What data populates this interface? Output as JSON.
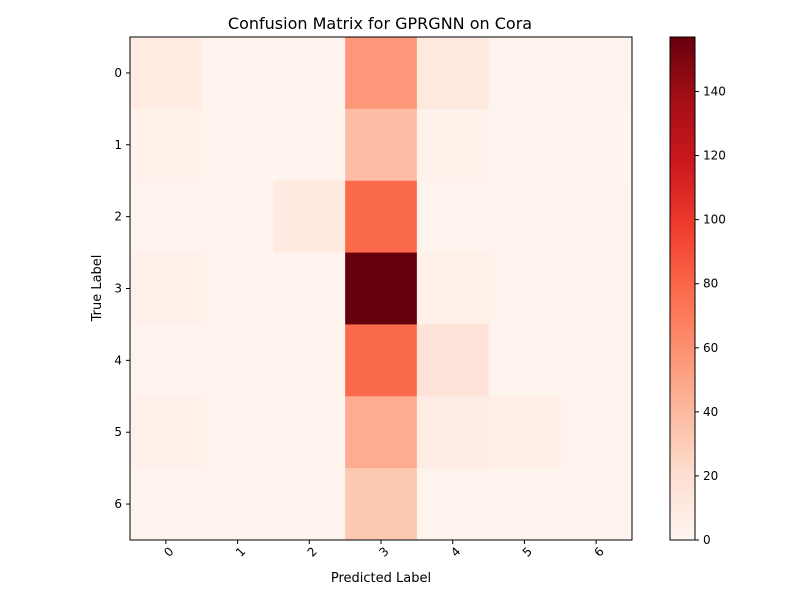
{
  "chart_data": {
    "type": "heatmap",
    "title": "Confusion Matrix for GPRGNN on Cora",
    "xlabel": "Predicted Label",
    "ylabel": "True Label",
    "x_categories": [
      "0",
      "1",
      "2",
      "3",
      "4",
      "5",
      "6"
    ],
    "y_categories": [
      "0",
      "1",
      "2",
      "3",
      "4",
      "5",
      "6"
    ],
    "values": [
      [
        9,
        2,
        2,
        56,
        11,
        2,
        2
      ],
      [
        3,
        1,
        1,
        38,
        3,
        1,
        1
      ],
      [
        2,
        2,
        10,
        78,
        2,
        2,
        2
      ],
      [
        4,
        2,
        2,
        157,
        5,
        2,
        2
      ],
      [
        2,
        2,
        2,
        78,
        16,
        2,
        2
      ],
      [
        4,
        2,
        2,
        46,
        8,
        7,
        2
      ],
      [
        2,
        2,
        2,
        32,
        2,
        2,
        2
      ]
    ],
    "colormap": "Reds",
    "vmin": 0,
    "vmax": 157,
    "colorbar_ticks": [
      0,
      20,
      40,
      60,
      80,
      100,
      120,
      140
    ],
    "grid": false
  }
}
